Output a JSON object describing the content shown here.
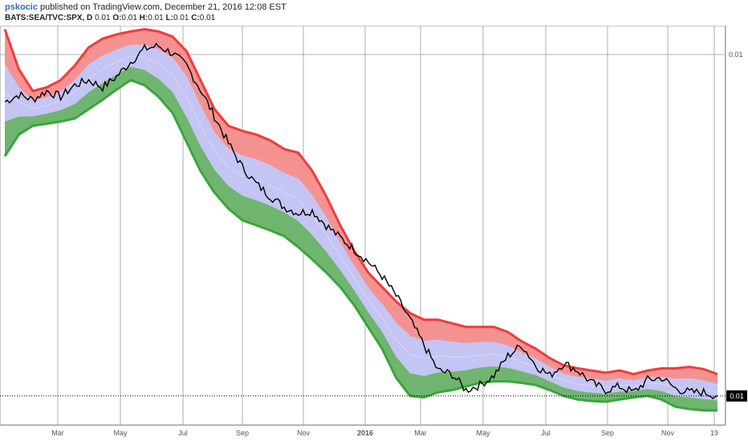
{
  "header": {
    "author": "pskocic",
    "published": "published on TradingView.com, December 21, 2016 12:08 EST",
    "symbol": "BATS:SEA/TVC:SPX, D",
    "value": "0.01",
    "o_label": "O:",
    "o": "0.01",
    "h_label": "H:",
    "h": "0.01",
    "l_label": "L:",
    "l": "0.01",
    "c_label": "C:",
    "c": "0.01"
  },
  "price_axis": {
    "top_label": "0.01",
    "current_label": "0.01"
  },
  "colors": {
    "upper_band": "#f03c3c",
    "upper_fill": "#f38c8c",
    "mid_fill": "#c4c4f5",
    "lower_fill": "#6fb56f",
    "lower_band": "#3ba53b",
    "price": "#000000",
    "grid": "#9a9a9a"
  },
  "chart_data": {
    "type": "line",
    "x_ticks": [
      "Mar",
      "May",
      "Jul",
      "Sep",
      "Nov",
      "2016",
      "Mar",
      "May",
      "Jul",
      "Sep",
      "Nov",
      "19"
    ],
    "y_ticks": [
      "0.01",
      "0.01"
    ],
    "series": [
      {
        "values": [
          0.01295,
          0.01305,
          0.01298,
          0.0131,
          0.01302,
          0.01318,
          0.01325,
          0.01315,
          0.0133,
          0.0135,
          0.01368,
          0.01372,
          0.01362,
          0.01345,
          0.01312,
          0.01275,
          0.01238,
          0.01205,
          0.01182,
          0.01165,
          0.0115,
          0.01142,
          0.01145,
          0.01125,
          0.01108,
          0.01092,
          0.01075,
          0.01055,
          0.01028,
          0.00995,
          0.0096,
          0.00925,
          0.0092,
          0.00898,
          0.00905,
          0.00918,
          0.00945,
          0.0096,
          0.00932,
          0.00918,
          0.00935,
          0.00925,
          0.00908,
          0.00898,
          0.00903,
          0.00895,
          0.00912,
          0.00915,
          0.009,
          0.00895,
          0.00895,
          0.0089
        ]
      },
      {
        "name": "Upper band",
        "values": [
          0.01395,
          0.0134,
          0.0131,
          0.01315,
          0.01325,
          0.01345,
          0.0137,
          0.01382,
          0.01388,
          0.01392,
          0.01395,
          0.01392,
          0.01385,
          0.01365,
          0.01325,
          0.01285,
          0.01262,
          0.01255,
          0.0125,
          0.01242,
          0.0123,
          0.01225,
          0.012,
          0.01165,
          0.01125,
          0.0109,
          0.0106,
          0.0104,
          0.0102,
          0.01004,
          0.00995,
          0.00995,
          0.0099,
          0.00985,
          0.00985,
          0.00985,
          0.00978,
          0.00965,
          0.00955,
          0.00942,
          0.00932,
          0.00928,
          0.00925,
          0.00922,
          0.00925,
          0.0092,
          0.00925,
          0.00928,
          0.00928,
          0.0093,
          0.00927,
          0.0092
        ]
      },
      {
        "name": "Lower band",
        "values": [
          0.0122,
          0.0125,
          0.01262,
          0.01265,
          0.01268,
          0.01272,
          0.01285,
          0.01298,
          0.01312,
          0.01325,
          0.01318,
          0.01302,
          0.0128,
          0.0124,
          0.012,
          0.0117,
          0.01148,
          0.01132,
          0.01125,
          0.01118,
          0.0111,
          0.01095,
          0.01078,
          0.0106,
          0.0104,
          0.01015,
          0.00985,
          0.00955,
          0.00915,
          0.0089,
          0.00888,
          0.00895,
          0.00898,
          0.00903,
          0.00908,
          0.0091,
          0.0091,
          0.00908,
          0.00905,
          0.00898,
          0.0089,
          0.00885,
          0.00883,
          0.00882,
          0.00885,
          0.00888,
          0.0089,
          0.00885,
          0.00875,
          0.00872,
          0.0087,
          0.0087
        ]
      }
    ],
    "ylim": [
      0.0085,
      0.014
    ],
    "grid": true
  }
}
